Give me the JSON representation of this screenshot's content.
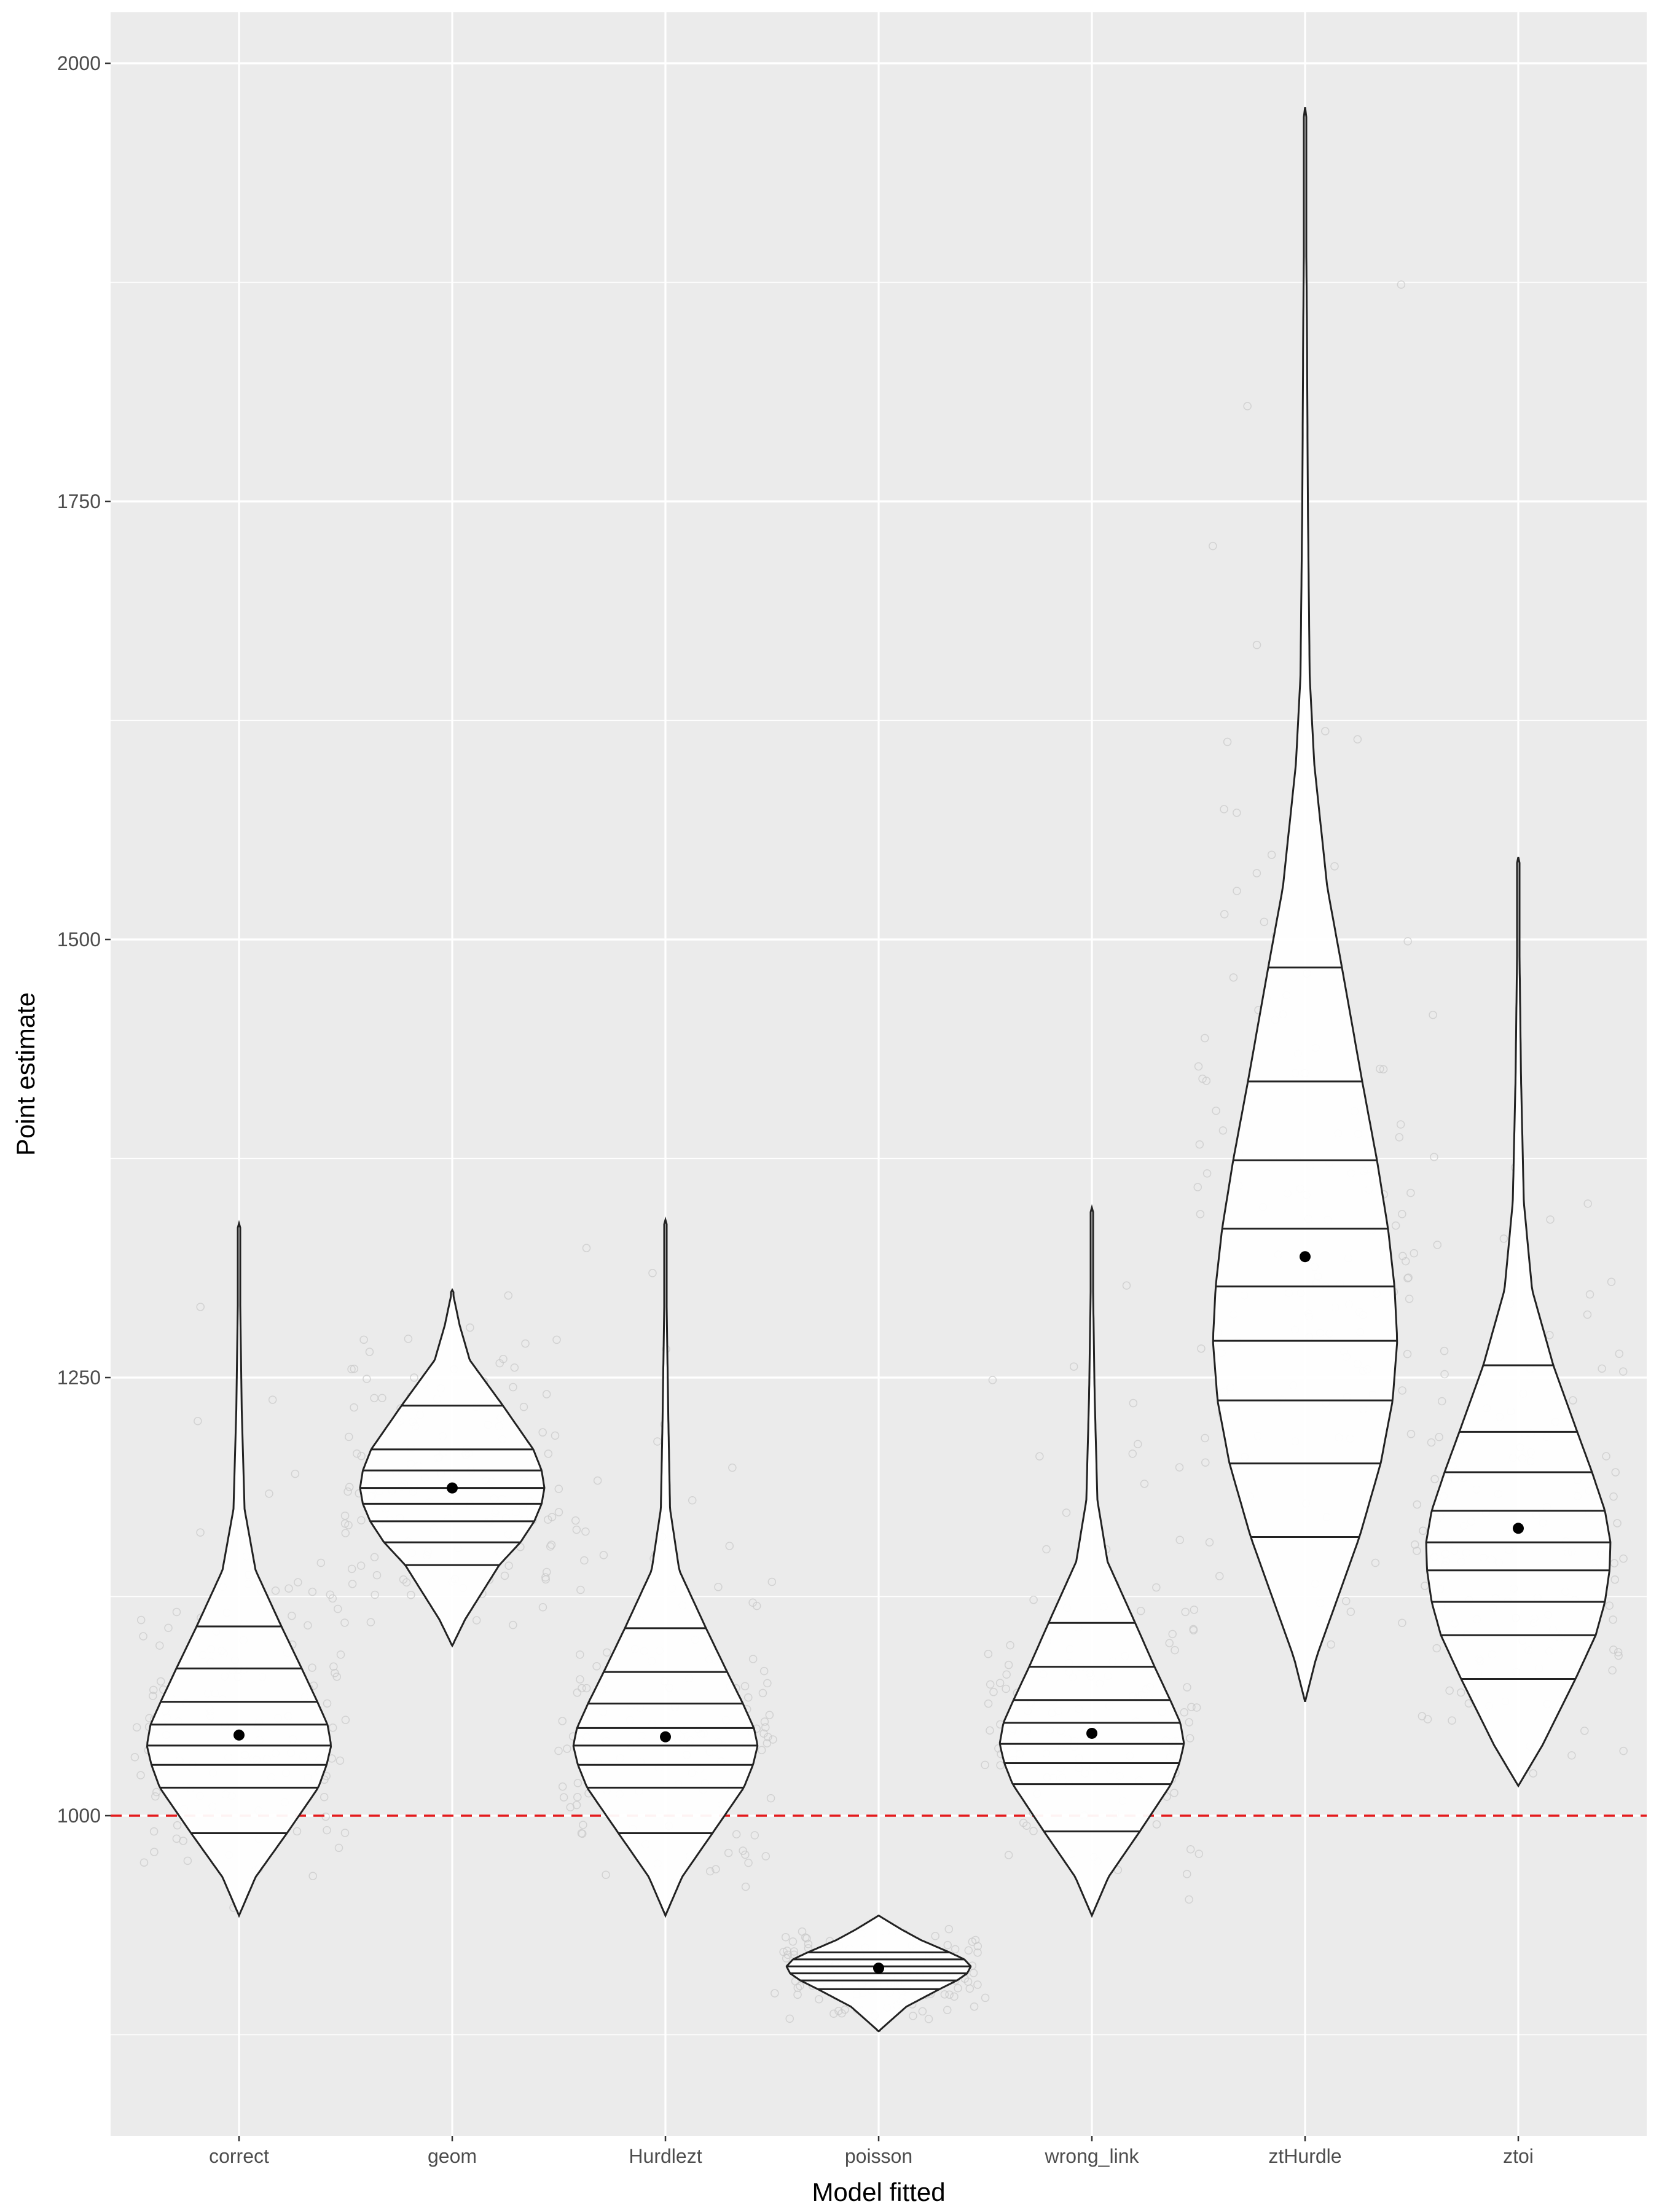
{
  "chart_data": {
    "type": "violin",
    "xlabel": "Model fitted",
    "ylabel": "Point estimate",
    "ylim": [
      825,
      2030
    ],
    "yticks": [
      1000,
      1250,
      1500,
      1750,
      2000
    ],
    "grid": true,
    "reference_line": {
      "y": 1000,
      "color": "#e41a1c",
      "style": "dashed"
    },
    "categories": [
      "correct",
      "geom",
      "Hurdlezt",
      "poisson",
      "wrong_link",
      "ztHurdle",
      "ztoi"
    ],
    "series": [
      {
        "category": "correct",
        "min": 943,
        "max": 1338,
        "mean": 1046,
        "quantiles": [
          990,
          1016,
          1029,
          1040,
          1052,
          1065,
          1084,
          1108
        ],
        "profile": [
          [
            943,
            0.0
          ],
          [
            965,
            0.18
          ],
          [
            990,
            0.52
          ],
          [
            1016,
            0.86
          ],
          [
            1029,
            0.95
          ],
          [
            1040,
            1.0
          ],
          [
            1052,
            0.96
          ],
          [
            1065,
            0.85
          ],
          [
            1084,
            0.68
          ],
          [
            1108,
            0.46
          ],
          [
            1140,
            0.18
          ],
          [
            1175,
            0.06
          ],
          [
            1230,
            0.03
          ],
          [
            1338,
            0.0
          ]
        ]
      },
      {
        "category": "geom",
        "min": 1097,
        "max": 1300,
        "mean": 1187,
        "quantiles": [
          1143,
          1156,
          1168,
          1178,
          1187,
          1197,
          1209,
          1234
        ],
        "profile": [
          [
            1097,
            0.0
          ],
          [
            1112,
            0.14
          ],
          [
            1143,
            0.51
          ],
          [
            1156,
            0.74
          ],
          [
            1168,
            0.89
          ],
          [
            1178,
            0.97
          ],
          [
            1187,
            1.0
          ],
          [
            1197,
            0.97
          ],
          [
            1209,
            0.88
          ],
          [
            1234,
            0.55
          ],
          [
            1260,
            0.19
          ],
          [
            1280,
            0.08
          ],
          [
            1300,
            0.0
          ]
        ]
      },
      {
        "category": "Hurdlezt",
        "min": 943,
        "max": 1340,
        "mean": 1045,
        "quantiles": [
          990,
          1016,
          1029,
          1040,
          1050,
          1064,
          1082,
          1107
        ],
        "profile": [
          [
            943,
            0.0
          ],
          [
            965,
            0.18
          ],
          [
            990,
            0.51
          ],
          [
            1016,
            0.85
          ],
          [
            1029,
            0.95
          ],
          [
            1040,
            1.0
          ],
          [
            1050,
            0.96
          ],
          [
            1064,
            0.84
          ],
          [
            1082,
            0.67
          ],
          [
            1107,
            0.44
          ],
          [
            1140,
            0.15
          ],
          [
            1175,
            0.05
          ],
          [
            1230,
            0.03
          ],
          [
            1340,
            0.0
          ]
        ]
      },
      {
        "category": "poisson",
        "min": 877,
        "max": 943,
        "mean": 913,
        "quantiles": [
          901,
          906,
          910,
          914,
          918,
          922
        ],
        "profile": [
          [
            877,
            0.0
          ],
          [
            891,
            0.3
          ],
          [
            901,
            0.66
          ],
          [
            906,
            0.85
          ],
          [
            910,
            0.96
          ],
          [
            914,
            1.0
          ],
          [
            918,
            0.93
          ],
          [
            922,
            0.77
          ],
          [
            929,
            0.46
          ],
          [
            935,
            0.25
          ],
          [
            943,
            0.0
          ]
        ]
      },
      {
        "category": "wrong_link",
        "min": 943,
        "max": 1347,
        "mean": 1047,
        "quantiles": [
          991,
          1018,
          1030,
          1041,
          1053,
          1066,
          1085,
          1110
        ],
        "profile": [
          [
            943,
            0.0
          ],
          [
            965,
            0.18
          ],
          [
            991,
            0.52
          ],
          [
            1018,
            0.86
          ],
          [
            1030,
            0.95
          ],
          [
            1041,
            1.0
          ],
          [
            1053,
            0.96
          ],
          [
            1066,
            0.85
          ],
          [
            1085,
            0.68
          ],
          [
            1110,
            0.47
          ],
          [
            1145,
            0.17
          ],
          [
            1180,
            0.06
          ],
          [
            1240,
            0.03
          ],
          [
            1347,
            0.0
          ]
        ]
      },
      {
        "category": "ztHurdle",
        "min": 1065,
        "max": 1975,
        "mean": 1319,
        "quantiles": [
          1159,
          1201,
          1237,
          1271,
          1302,
          1335,
          1374,
          1419,
          1484
        ],
        "profile": [
          [
            1065,
            0.0
          ],
          [
            1090,
            0.12
          ],
          [
            1159,
            0.59
          ],
          [
            1201,
            0.82
          ],
          [
            1237,
            0.95
          ],
          [
            1271,
            1.0
          ],
          [
            1302,
            0.97
          ],
          [
            1335,
            0.9
          ],
          [
            1374,
            0.78
          ],
          [
            1419,
            0.62
          ],
          [
            1484,
            0.4
          ],
          [
            1530,
            0.24
          ],
          [
            1600,
            0.1
          ],
          [
            1650,
            0.05
          ],
          [
            1750,
            0.03
          ],
          [
            1850,
            0.02
          ],
          [
            1975,
            0.0
          ]
        ]
      },
      {
        "category": "ztoi",
        "min": 1017,
        "max": 1547,
        "mean": 1164,
        "quantiles": [
          1078,
          1103,
          1122,
          1140,
          1156,
          1174,
          1196,
          1219,
          1257
        ],
        "profile": [
          [
            1017,
            0.0
          ],
          [
            1040,
            0.26
          ],
          [
            1078,
            0.62
          ],
          [
            1103,
            0.84
          ],
          [
            1122,
            0.94
          ],
          [
            1140,
            0.99
          ],
          [
            1156,
            1.0
          ],
          [
            1174,
            0.94
          ],
          [
            1196,
            0.8
          ],
          [
            1219,
            0.64
          ],
          [
            1257,
            0.38
          ],
          [
            1300,
            0.15
          ],
          [
            1350,
            0.06
          ],
          [
            1420,
            0.03
          ],
          [
            1547,
            0.0
          ]
        ]
      }
    ]
  }
}
